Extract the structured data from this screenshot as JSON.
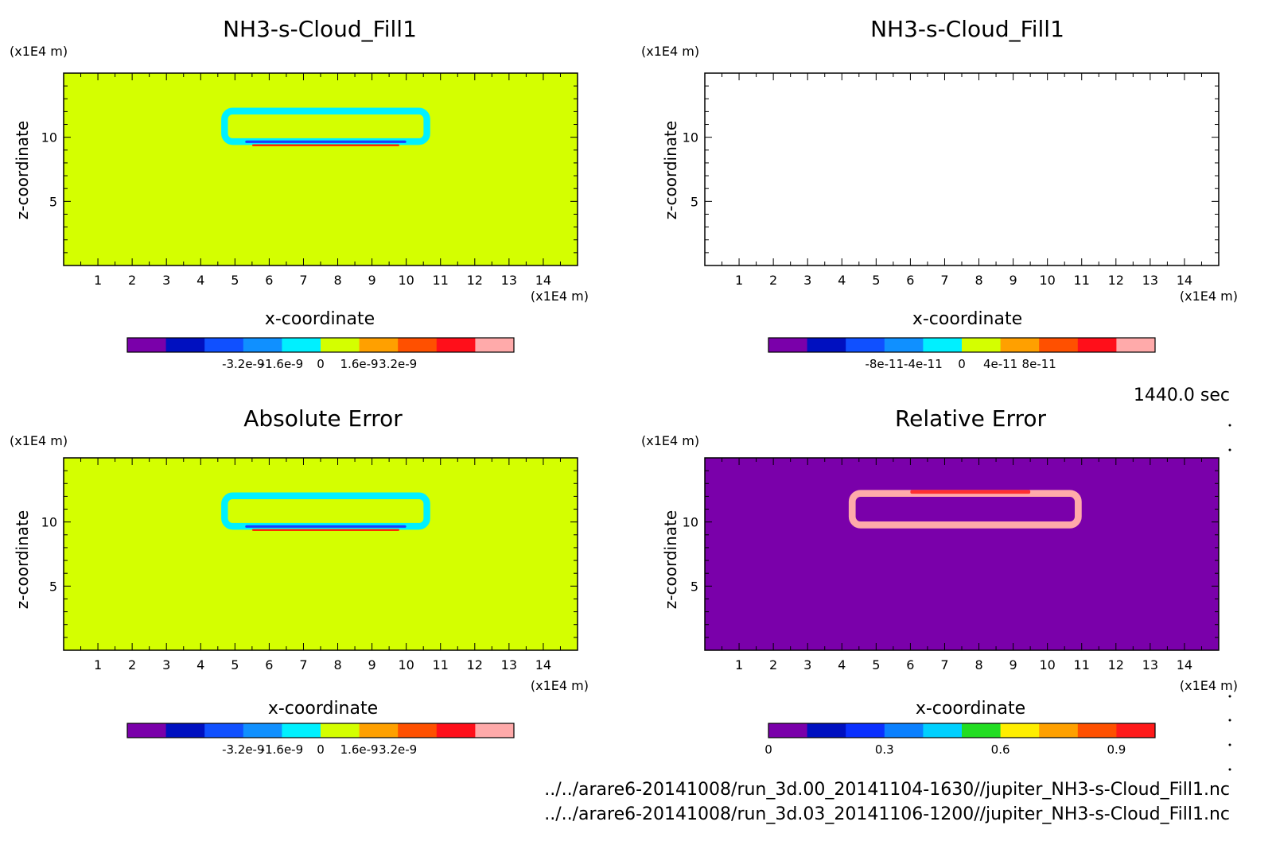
{
  "time_label": "1440.0 sec",
  "file_paths": [
    "../../arare6-20141008/run_3d.00_20141104-1630//jupiter_NH3-s-Cloud_Fill1.nc",
    "../../arare6-20141008/run_3d.03_20141106-1200//jupiter_NH3-s-Cloud_Fill1.nc"
  ],
  "chart_data": [
    {
      "type": "heatmap",
      "title": "NH3-s-Cloud_Fill1",
      "xlabel": "x-coordinate",
      "ylabel": "z-coordinate",
      "x_unit": "(x1E4 m)",
      "y_unit": "(x1E4 m)",
      "xlim": [
        0,
        15
      ],
      "ylim": [
        0,
        15
      ],
      "x_ticks": [
        "1",
        "2",
        "3",
        "4",
        "5",
        "6",
        "7",
        "8",
        "9",
        "10",
        "11",
        "12",
        "13",
        "14"
      ],
      "y_ticks": [
        "5",
        "10"
      ],
      "background_color": "#d4ff00",
      "features": [
        {
          "shape": "rounded-ring",
          "x_range": [
            4.6,
            10.7
          ],
          "z_range": [
            9.4,
            12.3
          ],
          "color": "#00f0ff"
        },
        {
          "shape": "band",
          "x_range": [
            5.3,
            10.0
          ],
          "z_range": [
            9.55,
            9.75
          ],
          "color": "#1a3cff"
        },
        {
          "shape": "band",
          "x_range": [
            5.5,
            9.8
          ],
          "z_range": [
            9.3,
            9.45
          ],
          "color": "#ff2b00"
        }
      ],
      "colorbar": {
        "colors": [
          "#7a00aa",
          "#0010c0",
          "#1050ff",
          "#1090ff",
          "#00f0ff",
          "#d4ff00",
          "#ffa000",
          "#ff5000",
          "#ff0f1a",
          "#ffaaaa"
        ],
        "tick_labels": [
          "-3.2e-9",
          "-1.6e-9",
          "0",
          "1.6e-9",
          "3.2e-9"
        ],
        "tick_values": [
          -3.2e-09,
          -1.6e-09,
          0,
          1.6e-09,
          3.2e-09
        ]
      }
    },
    {
      "type": "heatmap",
      "title": "NH3-s-Cloud_Fill1",
      "xlabel": "x-coordinate",
      "ylabel": "z-coordinate",
      "x_unit": "(x1E4 m)",
      "y_unit": "(x1E4 m)",
      "xlim": [
        0,
        15
      ],
      "ylim": [
        0,
        15
      ],
      "x_ticks": [
        "1",
        "2",
        "3",
        "4",
        "5",
        "6",
        "7",
        "8",
        "9",
        "10",
        "11",
        "12",
        "13",
        "14"
      ],
      "y_ticks": [
        "5",
        "10"
      ],
      "background_color": "#ffffff",
      "features": [],
      "colorbar": {
        "colors": [
          "#7a00aa",
          "#0010c0",
          "#1050ff",
          "#1090ff",
          "#00f0ff",
          "#d4ff00",
          "#ffa000",
          "#ff5000",
          "#ff0f1a",
          "#ffaaaa"
        ],
        "tick_labels": [
          "-8e-11",
          "-4e-11",
          "0",
          "4e-11",
          "8e-11"
        ],
        "tick_values": [
          -8e-11,
          -4e-11,
          0,
          4e-11,
          8e-11
        ]
      }
    },
    {
      "type": "heatmap",
      "title": "Absolute Error",
      "xlabel": "x-coordinate",
      "ylabel": "z-coordinate",
      "x_unit": "(x1E4 m)",
      "y_unit": "(x1E4 m)",
      "xlim": [
        0,
        15
      ],
      "ylim": [
        0,
        15
      ],
      "x_ticks": [
        "1",
        "2",
        "3",
        "4",
        "5",
        "6",
        "7",
        "8",
        "9",
        "10",
        "11",
        "12",
        "13",
        "14"
      ],
      "y_ticks": [
        "5",
        "10"
      ],
      "background_color": "#d4ff00",
      "features": [
        {
          "shape": "rounded-ring",
          "x_range": [
            4.6,
            10.7
          ],
          "z_range": [
            9.4,
            12.3
          ],
          "color": "#00f0ff"
        },
        {
          "shape": "band",
          "x_range": [
            5.3,
            10.0
          ],
          "z_range": [
            9.55,
            9.75
          ],
          "color": "#1a3cff"
        },
        {
          "shape": "band",
          "x_range": [
            5.5,
            9.8
          ],
          "z_range": [
            9.3,
            9.45
          ],
          "color": "#ff2b00"
        }
      ],
      "colorbar": {
        "colors": [
          "#7a00aa",
          "#0010c0",
          "#1050ff",
          "#1090ff",
          "#00f0ff",
          "#d4ff00",
          "#ffa000",
          "#ff5000",
          "#ff0f1a",
          "#ffaaaa"
        ],
        "tick_labels": [
          "-3.2e-9",
          "-1.6e-9",
          "0",
          "1.6e-9",
          "3.2e-9"
        ],
        "tick_values": [
          -3.2e-09,
          -1.6e-09,
          0,
          1.6e-09,
          3.2e-09
        ]
      }
    },
    {
      "type": "heatmap",
      "title": "Relative Error",
      "xlabel": "x-coordinate",
      "ylabel": "z-coordinate",
      "x_unit": "(x1E4 m)",
      "y_unit": "(x1E4 m)",
      "xlim": [
        0,
        15
      ],
      "ylim": [
        0,
        15
      ],
      "x_ticks": [
        "1",
        "2",
        "3",
        "4",
        "5",
        "6",
        "7",
        "8",
        "9",
        "10",
        "11",
        "12",
        "13",
        "14"
      ],
      "y_ticks": [
        "5",
        "10"
      ],
      "background_color": "#7a00aa",
      "features": [
        {
          "shape": "rounded-ring",
          "x_range": [
            4.2,
            11.0
          ],
          "z_range": [
            9.5,
            12.5
          ],
          "color": "#ffaaaa"
        },
        {
          "shape": "band",
          "x_range": [
            6.0,
            9.5
          ],
          "z_range": [
            12.2,
            12.5
          ],
          "color": "#ff3030"
        }
      ],
      "colorbar": {
        "colors": [
          "#7a00aa",
          "#0010c0",
          "#0a30ff",
          "#0a80ff",
          "#00d0ff",
          "#22dd22",
          "#ffee00",
          "#ffa000",
          "#ff5000",
          "#ff1a1a"
        ],
        "tick_labels": [
          "0",
          "0.3",
          "0.6",
          "0.9"
        ],
        "tick_values": [
          0,
          0.3,
          0.6,
          0.9
        ],
        "range": [
          0,
          1
        ]
      }
    }
  ]
}
